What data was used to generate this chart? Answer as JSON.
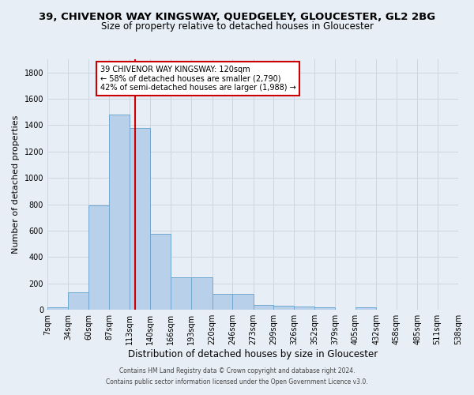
{
  "title_line1": "39, CHIVENOR WAY KINGSWAY, QUEDGELEY, GLOUCESTER, GL2 2BG",
  "title_line2": "Size of property relative to detached houses in Gloucester",
  "xlabel": "Distribution of detached houses by size in Gloucester",
  "ylabel": "Number of detached properties",
  "bin_edges": [
    7,
    34,
    60,
    87,
    113,
    140,
    166,
    193,
    220,
    246,
    273,
    299,
    326,
    352,
    379,
    405,
    432,
    458,
    485,
    511,
    538
  ],
  "bar_heights": [
    20,
    135,
    790,
    1480,
    1380,
    575,
    245,
    245,
    120,
    120,
    35,
    30,
    25,
    20,
    0,
    20,
    0,
    0,
    0,
    0
  ],
  "bar_color": "#b8d0ea",
  "bar_edgecolor": "#6fa8d0",
  "redline_x": 120,
  "redline_color": "#cc0000",
  "annotation_line1": "39 CHIVENOR WAY KINGSWAY: 120sqm",
  "annotation_line2": "← 58% of detached houses are smaller (2,790)",
  "annotation_line3": "42% of semi-detached houses are larger (1,988) →",
  "annotation_box_facecolor": "#ffffff",
  "annotation_box_edgecolor": "#cc0000",
  "ylim": [
    0,
    1900
  ],
  "yticks": [
    0,
    200,
    400,
    600,
    800,
    1000,
    1200,
    1400,
    1600,
    1800
  ],
  "grid_color": "#ccd5e0",
  "background_color": "#e8eef5",
  "footer_line1": "Contains HM Land Registry data © Crown copyright and database right 2024.",
  "footer_line2": "Contains public sector information licensed under the Open Government Licence v3.0.",
  "title1_fontsize": 9.5,
  "title2_fontsize": 8.5,
  "tick_fontsize": 7,
  "ylabel_fontsize": 8,
  "xlabel_fontsize": 8.5,
  "annot_fontsize": 7,
  "footer_fontsize": 5.5
}
